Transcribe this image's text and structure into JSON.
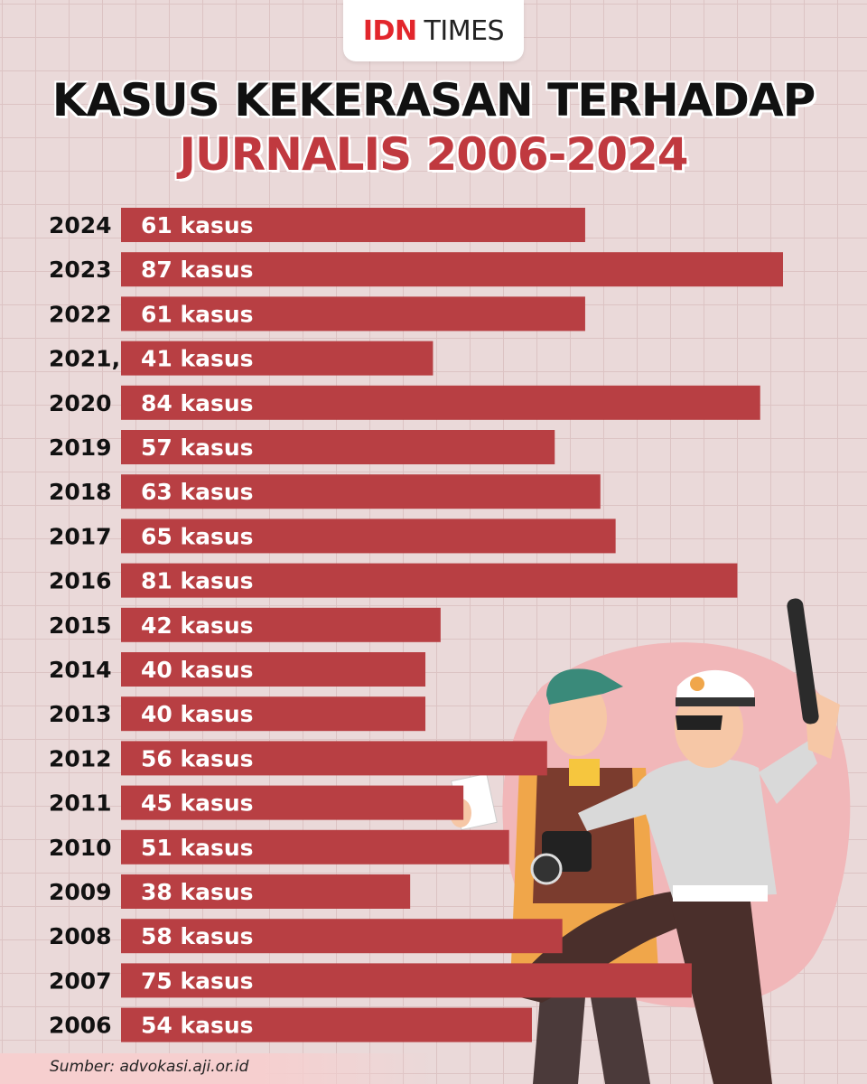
{
  "brand": {
    "idn": "IDN",
    "times": "TIMES"
  },
  "title": {
    "line1": "KASUS KEKERASAN TERHADAP",
    "line2": "JURNALIS 2006-2024"
  },
  "source": "Sumber: advokasi.aji.or.id",
  "colors": {
    "bar": "#b83f43",
    "title_accent": "#c0393f",
    "background": "#ead9d9"
  },
  "chart_data": {
    "type": "bar",
    "orientation": "horizontal",
    "title": "KASUS KEKERASAN TERHADAP JURNALIS 2006-2024",
    "categories": [
      "2024",
      "2023",
      "2022",
      "2021,",
      "2020",
      "2019",
      "2018",
      "2017",
      "2016",
      "2015",
      "2014",
      "2013",
      "2012",
      "2011",
      "2010",
      "2009",
      "2008",
      "2007",
      "2006"
    ],
    "values": [
      61,
      87,
      61,
      41,
      84,
      57,
      63,
      65,
      81,
      42,
      40,
      40,
      56,
      45,
      51,
      38,
      58,
      75,
      54
    ],
    "labels": [
      "61 kasus",
      "87 kasus",
      "61 kasus",
      "41 kasus",
      "84 kasus",
      "57 kasus",
      "63 kasus",
      "65 kasus",
      "81 kasus",
      "42 kasus",
      "40 kasus",
      "40 kasus",
      "56 kasus",
      "45 kasus",
      "51 kasus",
      "38 kasus",
      "58 kasus",
      "75 kasus",
      "54 kasus"
    ],
    "xlim": [
      0,
      87
    ],
    "grid": true,
    "legend": "none"
  },
  "illustration": {
    "description_icons": [
      "journalist-figure",
      "police-officer-figure"
    ]
  }
}
